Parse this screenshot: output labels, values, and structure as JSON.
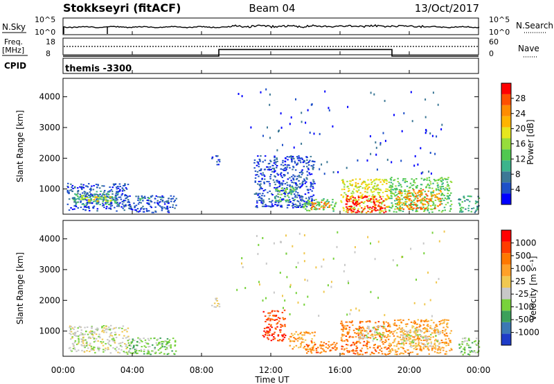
{
  "header": {
    "station": "Stokkseyri (fitACF)",
    "beam": "Beam 04",
    "date": "13/Oct/2017"
  },
  "noise_panel": {
    "left_label": "N.Sky",
    "right_label": "N.Search",
    "left_ticks": [
      "10^5",
      "10^0"
    ],
    "right_ticks": [
      "10^5",
      "10^0"
    ]
  },
  "freq_panel": {
    "left_label_top": "Freq.",
    "left_label_unit": "[MHz]",
    "left_ticks": [
      "18",
      "8"
    ],
    "right_label": "Nave",
    "right_ticks": [
      "60",
      "0"
    ]
  },
  "cpid": {
    "label": "CPID",
    "value": "themis -3300"
  },
  "power_panel": {
    "ylabel": "Slant Range [km]",
    "yticks": [
      "4000",
      "3000",
      "2000",
      "1000"
    ],
    "colorbar_label": "Power [dB]",
    "colorbar_ticks": [
      "28",
      "24",
      "20",
      "16",
      "12",
      "8",
      "4"
    ],
    "colors": [
      "#0000ff",
      "#1e50c8",
      "#3c7896",
      "#3cb48c",
      "#50c850",
      "#96dc3c",
      "#e6e61e",
      "#ffb400",
      "#ff8c00",
      "#ff5000",
      "#ff0000"
    ]
  },
  "velocity_panel": {
    "ylabel": "Slant Range [km]",
    "yticks": [
      "4000",
      "3000",
      "2000",
      "1000"
    ],
    "colorbar_label": "Velocity [m s⁻¹]",
    "colorbar_ticks": [
      "1000",
      "500",
      "100",
      "25",
      "-25",
      "-100",
      "-500",
      "-1000"
    ],
    "colors": [
      "#1e3cc8",
      "#3c78b4",
      "#3ca05a",
      "#78d23c",
      "#c8c8c8",
      "#f0c850",
      "#ffa028",
      "#ff7800",
      "#ff3c00",
      "#ff0000"
    ]
  },
  "xaxis": {
    "label": "Time UT",
    "ticks": [
      "00:00",
      "04:00",
      "08:00",
      "12:00",
      "16:00",
      "20:00",
      "00:00"
    ]
  },
  "chart_data": {
    "type": "heatmap",
    "title": "Stokkseyri (fitACF)  Beam 04  13/Oct/2017",
    "xlabel": "Time UT",
    "ylabel": "Slant Range [km]",
    "x_range_hours": [
      0,
      24
    ],
    "y_range_km": [
      180,
      4600
    ],
    "frequency_steps": [
      {
        "start_h": 0,
        "end_h": 9,
        "freq_mhz": 8
      },
      {
        "start_h": 9,
        "end_h": 19,
        "freq_mhz": 12
      },
      {
        "start_h": 19,
        "end_h": 24,
        "freq_mhz": 8
      }
    ],
    "power_regions": [
      {
        "t0": 0.2,
        "t1": 3.8,
        "r0": 300,
        "r1": 1200,
        "level": 1
      },
      {
        "t0": 0.5,
        "t1": 3.2,
        "r0": 500,
        "r1": 950,
        "level": 3
      },
      {
        "t0": 0.9,
        "t1": 2.8,
        "r0": 600,
        "r1": 820,
        "level": 6
      },
      {
        "t0": 3.8,
        "t1": 6.5,
        "r0": 250,
        "r1": 800,
        "level": 1
      },
      {
        "t0": 4.3,
        "t1": 5.0,
        "r0": 620,
        "r1": 760,
        "level": 3
      },
      {
        "t0": 5.6,
        "t1": 6.4,
        "r0": 600,
        "r1": 760,
        "level": 2
      },
      {
        "t0": 8.5,
        "t1": 9.0,
        "r0": 1800,
        "r1": 2100,
        "level": 1
      },
      {
        "t0": 11.0,
        "t1": 14.5,
        "r0": 400,
        "r1": 2100,
        "level": 1
      },
      {
        "t0": 12.2,
        "t1": 13.4,
        "r0": 600,
        "r1": 1100,
        "level": 4
      },
      {
        "t0": 13.8,
        "t1": 15.8,
        "r0": 300,
        "r1": 700,
        "level": 4
      },
      {
        "t0": 14.2,
        "t1": 15.4,
        "r0": 350,
        "r1": 600,
        "level": 8
      },
      {
        "t0": 16.0,
        "t1": 18.8,
        "r0": 250,
        "r1": 1350,
        "level": 6
      },
      {
        "t0": 16.3,
        "t1": 18.6,
        "r0": 250,
        "r1": 800,
        "level": 10
      },
      {
        "t0": 18.8,
        "t1": 22.4,
        "r0": 250,
        "r1": 1400,
        "level": 4
      },
      {
        "t0": 19.2,
        "t1": 21.8,
        "r0": 350,
        "r1": 1000,
        "level": 8
      },
      {
        "t0": 22.8,
        "t1": 24.0,
        "r0": 250,
        "r1": 800,
        "level": 3
      }
    ],
    "velocity_regions": [
      {
        "t0": 0.3,
        "t1": 3.8,
        "r0": 300,
        "r1": 1200,
        "level": 4
      },
      {
        "t0": 3.6,
        "t1": 6.5,
        "r0": 250,
        "r1": 800,
        "level": 3
      },
      {
        "t0": 5.2,
        "t1": 6.4,
        "r0": 600,
        "r1": 760,
        "level": 3
      },
      {
        "t0": 8.5,
        "t1": 9.0,
        "r0": 1800,
        "r1": 2100,
        "level": 4
      },
      {
        "t0": 11.5,
        "t1": 12.8,
        "r0": 700,
        "r1": 1700,
        "level": 8
      },
      {
        "t0": 13.0,
        "t1": 14.5,
        "r0": 400,
        "r1": 1000,
        "level": 6
      },
      {
        "t0": 14.0,
        "t1": 15.8,
        "r0": 300,
        "r1": 700,
        "level": 7
      },
      {
        "t0": 16.0,
        "t1": 18.8,
        "r0": 250,
        "r1": 1350,
        "level": 7
      },
      {
        "t0": 17.0,
        "t1": 18.6,
        "r0": 700,
        "r1": 1200,
        "level": 4
      },
      {
        "t0": 18.8,
        "t1": 22.4,
        "r0": 250,
        "r1": 1400,
        "level": 6
      },
      {
        "t0": 19.5,
        "t1": 21.8,
        "r0": 500,
        "r1": 1100,
        "level": 4
      },
      {
        "t0": 22.8,
        "t1": 24.0,
        "r0": 250,
        "r1": 800,
        "level": 3
      }
    ]
  }
}
